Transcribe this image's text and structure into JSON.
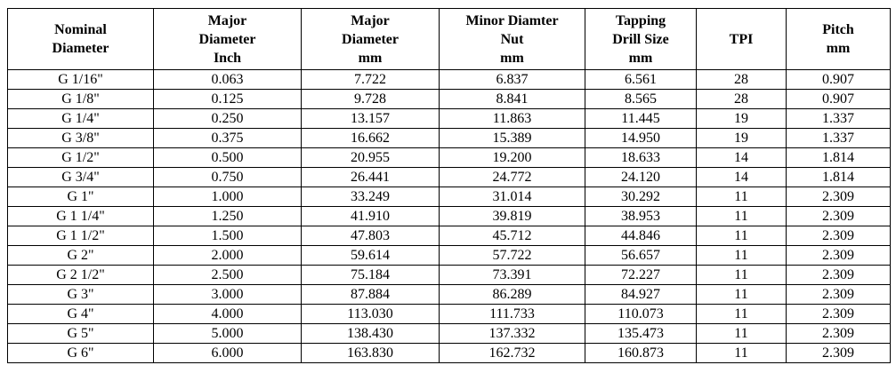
{
  "table": {
    "headers": [
      "Nominal\nDiameter",
      "Major\nDiameter\nInch",
      "Major\nDiameter\nmm",
      "Minor Diamter\nNut\nmm",
      "Tapping\nDrill Size\nmm",
      "TPI",
      "Pitch\nmm"
    ],
    "rows": [
      [
        "G 1/16\"",
        "0.063",
        "7.722",
        "6.837",
        "6.561",
        "28",
        "0.907"
      ],
      [
        "G 1/8\"",
        "0.125",
        "9.728",
        "8.841",
        "8.565",
        "28",
        "0.907"
      ],
      [
        "G 1/4\"",
        "0.250",
        "13.157",
        "11.863",
        "11.445",
        "19",
        "1.337"
      ],
      [
        "G 3/8\"",
        "0.375",
        "16.662",
        "15.389",
        "14.950",
        "19",
        "1.337"
      ],
      [
        "G 1/2\"",
        "0.500",
        "20.955",
        "19.200",
        "18.633",
        "14",
        "1.814"
      ],
      [
        "G 3/4\"",
        "0.750",
        "26.441",
        "24.772",
        "24.120",
        "14",
        "1.814"
      ],
      [
        "G 1\"",
        "1.000",
        "33.249",
        "31.014",
        "30.292",
        "11",
        "2.309"
      ],
      [
        "G 1 1/4\"",
        "1.250",
        "41.910",
        "39.819",
        "38.953",
        "11",
        "2.309"
      ],
      [
        "G 1 1/2\"",
        "1.500",
        "47.803",
        "45.712",
        "44.846",
        "11",
        "2.309"
      ],
      [
        "G 2\"",
        "2.000",
        "59.614",
        "57.722",
        "56.657",
        "11",
        "2.309"
      ],
      [
        "G 2 1/2\"",
        "2.500",
        "75.184",
        "73.391",
        "72.227",
        "11",
        "2.309"
      ],
      [
        "G 3\"",
        "3.000",
        "87.884",
        "86.289",
        "84.927",
        "11",
        "2.309"
      ],
      [
        "G 4\"",
        "4.000",
        "113.030",
        "111.733",
        "110.073",
        "11",
        "2.309"
      ],
      [
        "G 5\"",
        "5.000",
        "138.430",
        "137.332",
        "135.473",
        "11",
        "2.309"
      ],
      [
        "G 6\"",
        "6.000",
        "163.830",
        "162.732",
        "160.873",
        "11",
        "2.309"
      ]
    ]
  }
}
